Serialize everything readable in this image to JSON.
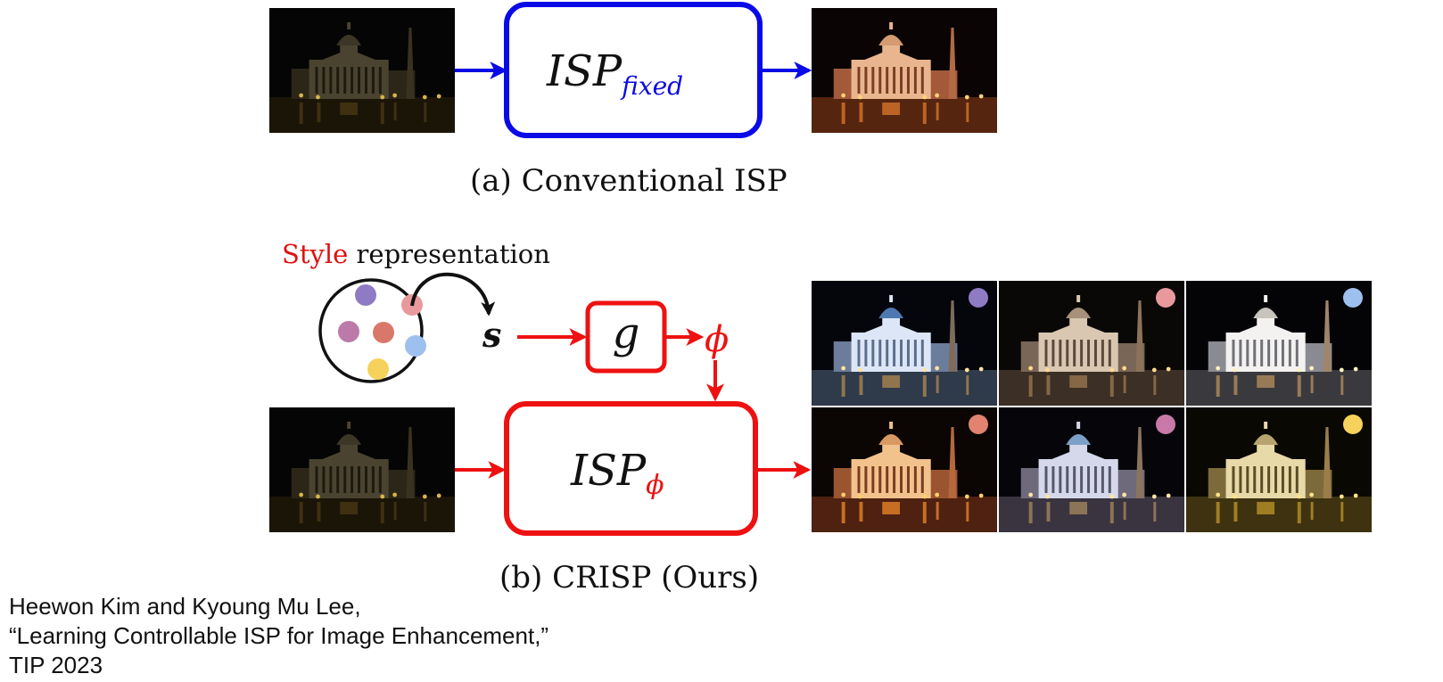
{
  "diagram": {
    "conventional": {
      "block_main": "ISP",
      "block_sub": "fixed",
      "caption": "(a) Conventional  ISP",
      "colors": {
        "block": "#0a0ae6"
      }
    },
    "crisp": {
      "style_word": "Style",
      "style_rest": " representation",
      "style_vector": "s",
      "generator": "g",
      "param": "ϕ",
      "block_main": "ISP",
      "block_sub": "ϕ",
      "caption": "(b) CRISP (Ours)",
      "colors": {
        "block": "#ee1111"
      },
      "style_dots": [
        "#8f7bc4",
        "#e8999b",
        "#bb7aa8",
        "#d9786a",
        "#9ec0ee",
        "#f6d25c"
      ],
      "output_styles": [
        "#8f7bc4",
        "#e8999b",
        "#9ec0ee",
        "#e28271",
        "#c979a8",
        "#f6d25c"
      ]
    }
  },
  "citation": {
    "authors": "Heewon Kim and Kyoung Mu Lee,",
    "title": "“Learning Controllable ISP for Image Enhancement,”",
    "venue": "TIP 2023"
  }
}
